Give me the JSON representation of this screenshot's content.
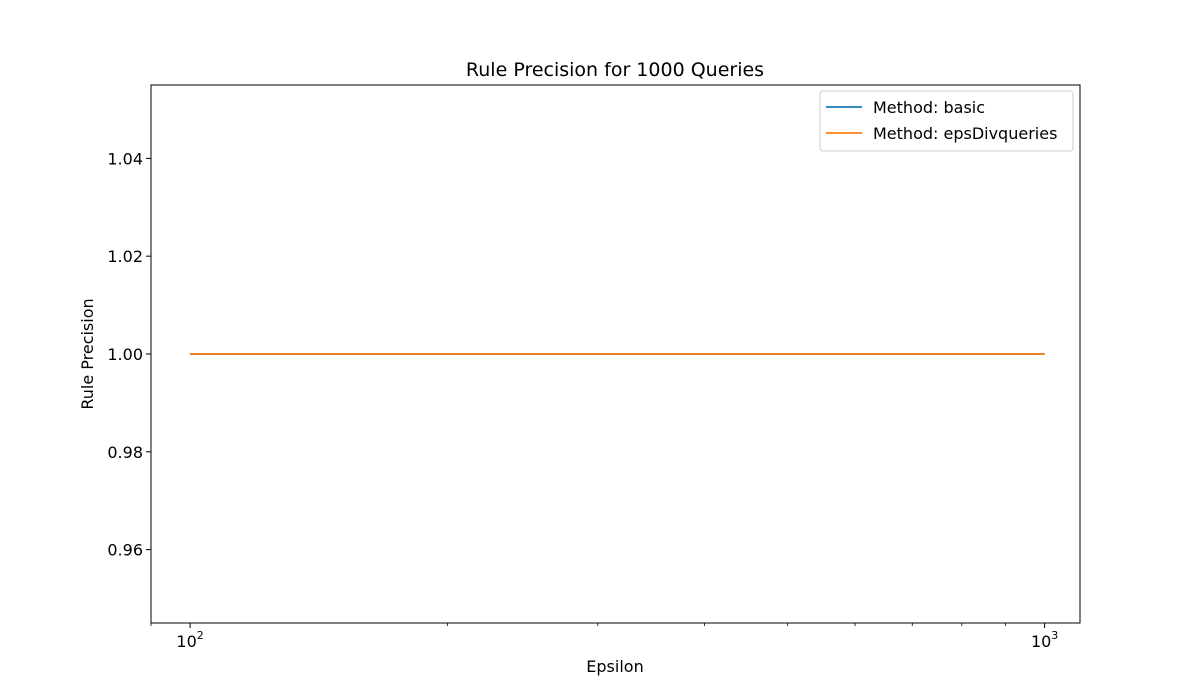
{
  "chart_data": {
    "type": "line",
    "title": "Rule Precision for 1000 Queries",
    "xlabel": "Epsilon",
    "ylabel": "Rule Precision",
    "xscale": "log",
    "xlim": [
      90,
      1100
    ],
    "ylim": [
      0.945,
      1.055
    ],
    "x_ticks": [
      {
        "base": "10",
        "exp": "2",
        "value": 100
      },
      {
        "base": "10",
        "exp": "3",
        "value": 1000
      }
    ],
    "y_ticks": [
      "0.96",
      "0.98",
      "1.00",
      "1.02",
      "1.04"
    ],
    "grid": false,
    "legend_position": "top-right",
    "series": [
      {
        "name": "Method: basic",
        "color": "#1f77b4",
        "x": [
          100,
          1000
        ],
        "y": [
          1.0,
          1.0
        ]
      },
      {
        "name": "Method: epsDivqueries",
        "color": "#ff7f0e",
        "x": [
          100,
          1000
        ],
        "y": [
          1.0,
          1.0
        ]
      }
    ]
  }
}
